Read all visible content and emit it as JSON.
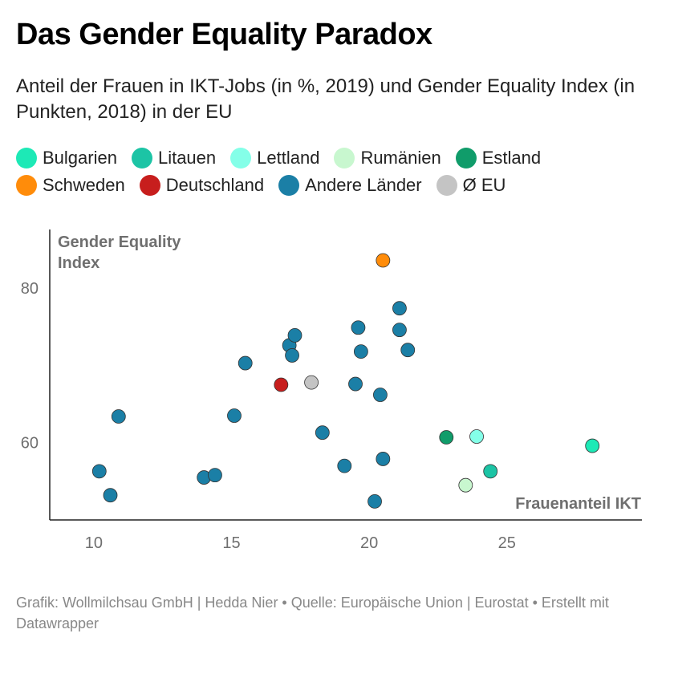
{
  "title": "Das Gender Equality Paradox",
  "subtitle": "Anteil der Frauen in IKT-Jobs (in %, 2019) und Gender Equality Index (in Punkten, 2018) in der EU",
  "legend": [
    {
      "label": "Bulgarien",
      "color": "#1de9b6"
    },
    {
      "label": "Litauen",
      "color": "#1cc4a5"
    },
    {
      "label": "Lettland",
      "color": "#84ffe8"
    },
    {
      "label": "Rumänien",
      "color": "#c8f7cf"
    },
    {
      "label": "Estland",
      "color": "#109c6a"
    },
    {
      "label": "Schweden",
      "color": "#ff8c0a"
    },
    {
      "label": "Deutschland",
      "color": "#c71e1d"
    },
    {
      "label": "Andere Länder",
      "color": "#1b7fa6"
    },
    {
      "label": "Ø EU",
      "color": "#c4c4c4"
    }
  ],
  "footer": "Grafik: Wollmilchsau GmbH | Hedda Nier • Quelle: Europäische Union | Eurostat • Erstellt mit Datawrapper",
  "chart_data": {
    "type": "scatter",
    "title": "Das Gender Equality Paradox",
    "xlabel": "Frauenanteil IKT",
    "ylabel": "Gender Equality Index",
    "xlim": [
      8.4,
      29.9
    ],
    "ylim": [
      50.0,
      87.6
    ],
    "x_ticks": [
      10,
      15,
      20,
      25
    ],
    "y_ticks": [
      60,
      80
    ],
    "grid": false,
    "legend_position": "top",
    "series": [
      {
        "name": "Andere Länder",
        "color": "#1b7fa6",
        "points": [
          {
            "x": 10.2,
            "y": 56.3
          },
          {
            "x": 10.6,
            "y": 53.2
          },
          {
            "x": 10.9,
            "y": 63.4
          },
          {
            "x": 14.0,
            "y": 55.5
          },
          {
            "x": 14.4,
            "y": 55.8
          },
          {
            "x": 15.1,
            "y": 63.5
          },
          {
            "x": 15.5,
            "y": 70.3
          },
          {
            "x": 17.1,
            "y": 72.6
          },
          {
            "x": 17.2,
            "y": 71.3
          },
          {
            "x": 17.3,
            "y": 73.9
          },
          {
            "x": 18.3,
            "y": 61.3
          },
          {
            "x": 19.1,
            "y": 57.0
          },
          {
            "x": 19.5,
            "y": 67.6
          },
          {
            "x": 19.6,
            "y": 74.9
          },
          {
            "x": 19.7,
            "y": 71.8
          },
          {
            "x": 20.2,
            "y": 52.4
          },
          {
            "x": 20.4,
            "y": 66.2
          },
          {
            "x": 20.5,
            "y": 57.9
          },
          {
            "x": 21.1,
            "y": 77.4
          },
          {
            "x": 21.1,
            "y": 74.6
          },
          {
            "x": 21.4,
            "y": 72.0
          }
        ]
      },
      {
        "name": "Bulgarien",
        "color": "#1de9b6",
        "points": [
          {
            "x": 28.1,
            "y": 59.6
          }
        ]
      },
      {
        "name": "Litauen",
        "color": "#1cc4a5",
        "points": [
          {
            "x": 24.4,
            "y": 56.3
          }
        ]
      },
      {
        "name": "Lettland",
        "color": "#84ffe8",
        "points": [
          {
            "x": 23.9,
            "y": 60.8
          }
        ]
      },
      {
        "name": "Rumänien",
        "color": "#c8f7cf",
        "points": [
          {
            "x": 23.5,
            "y": 54.5
          }
        ]
      },
      {
        "name": "Estland",
        "color": "#109c6a",
        "points": [
          {
            "x": 22.8,
            "y": 60.7
          }
        ]
      },
      {
        "name": "Schweden",
        "color": "#ff8c0a",
        "points": [
          {
            "x": 20.5,
            "y": 83.6
          }
        ]
      },
      {
        "name": "Deutschland",
        "color": "#c71e1d",
        "points": [
          {
            "x": 16.8,
            "y": 67.5
          }
        ]
      },
      {
        "name": "Ø EU",
        "color": "#c4c4c4",
        "points": [
          {
            "x": 17.9,
            "y": 67.8
          }
        ]
      }
    ]
  }
}
